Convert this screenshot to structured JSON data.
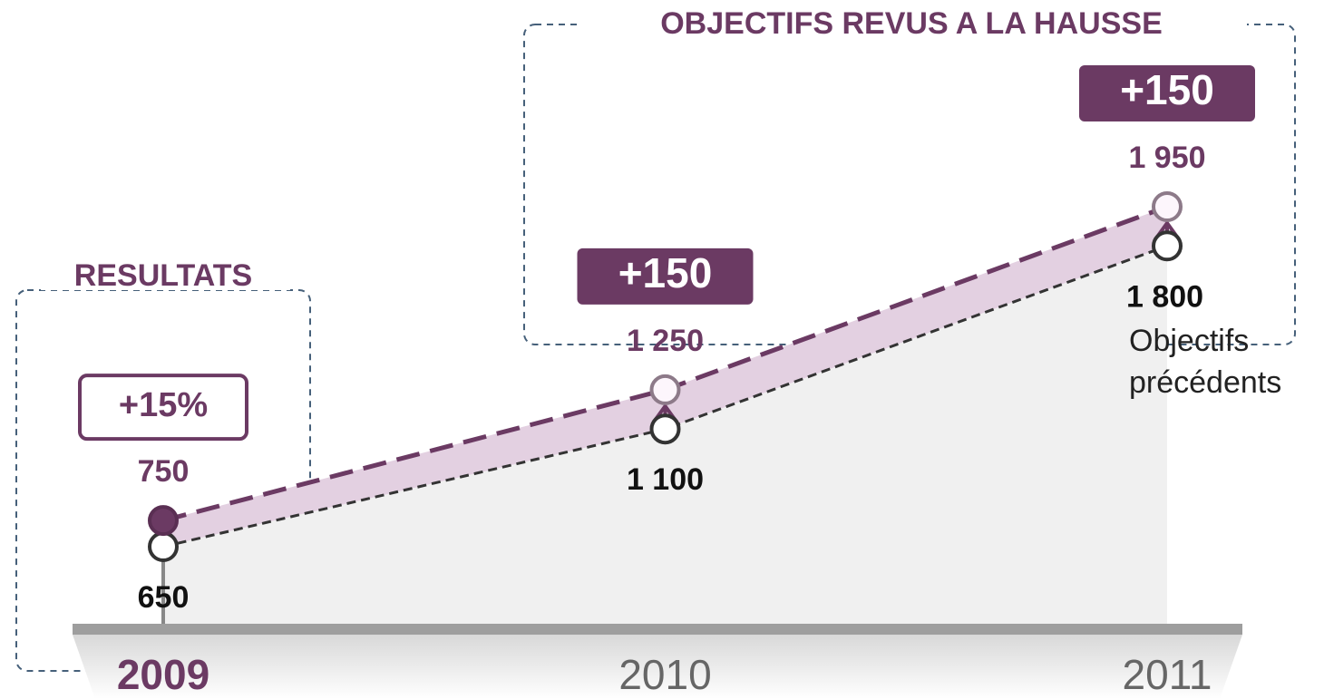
{
  "chart_data": {
    "type": "band",
    "categories": [
      "2009",
      "2010",
      "2011"
    ],
    "series": [
      {
        "name": "Objectifs précédents",
        "color": "#333333",
        "values": [
          650,
          1100,
          1800
        ],
        "value_labels": [
          "650",
          "1 100",
          "1 800"
        ]
      },
      {
        "color": "#6b3a63",
        "values": [
          750,
          1250,
          1950
        ],
        "value_labels": [
          "750",
          "1 250",
          "1 950"
        ]
      }
    ],
    "annotations": [
      "+15%",
      "+150",
      "+150"
    ],
    "groups": [
      {
        "label": "RESULTATS"
      },
      {
        "label": "OBJECTIFS REVUS A LA HAUSSE"
      }
    ],
    "fill_color": "#e3d0e1"
  }
}
